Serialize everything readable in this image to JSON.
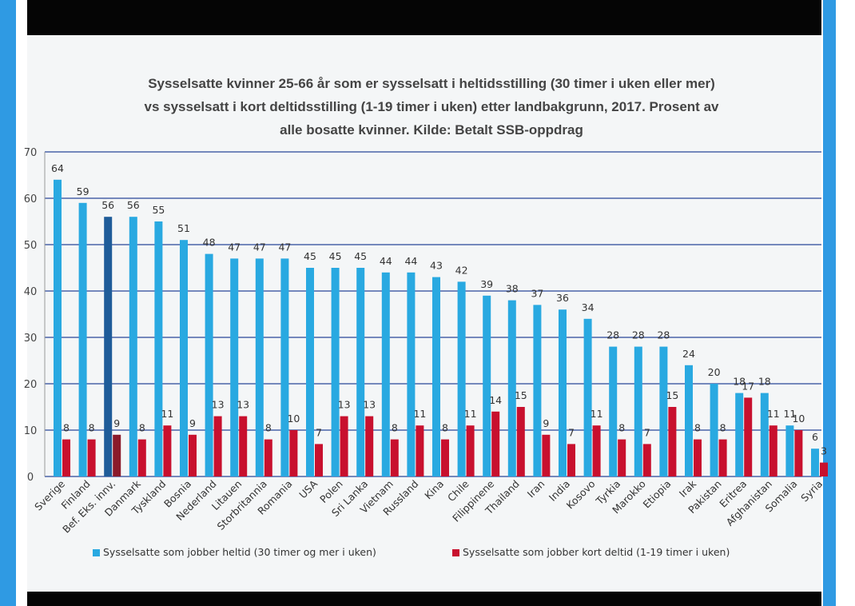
{
  "title_lines": [
    "Sysselsatte  kvinner 25-66 år som er sysselsatt  i  heltidsstilling (30 timer i uken eller mer)",
    "vs sysselsatt i kort deltidsstilling (1-19 timer i uken)  etter landbakgrunn, 2017. Prosent av",
    "alle bosatte kvinner. Kilde: Betalt SSB-oppdrag"
  ],
  "colors": {
    "heltid": "#29a9e1",
    "heltid_highlight": "#1f5c99",
    "deltid": "#c8102e",
    "deltid_highlight": "#8b1a2b",
    "grid": "#4a63a8",
    "frame": "#2f9ae3"
  },
  "chart_data": {
    "type": "bar",
    "title": "Sysselsatte  kvinner 25-66 år som er sysselsatt  i  heltidsstilling (30 timer i uken eller mer) vs sysselsatt i kort deltidsstilling (1-19 timer i uken)  etter landbakgrunn, 2017. Prosent av alle bosatte kvinner. Kilde: Betalt SSB-oppdrag",
    "categories": [
      "Sverige",
      "Finland",
      "Bef. Eks. innv.",
      "Danmark",
      "Tyskland",
      "Bosnia",
      "Nederland",
      "Litauen",
      "Storbritannia",
      "Romania",
      "USA",
      "Polen",
      "Sri Lanka",
      "Vietnam",
      "Russland",
      "Kina",
      "Chile",
      "Filippinene",
      "Thailand",
      "Iran",
      "India",
      "Kosovo",
      "Tyrkia",
      "Marokko",
      "Etiopia",
      "Irak",
      "Pakistan",
      "Eritrea",
      "Afghanistan",
      "Somalia",
      "Syria"
    ],
    "series": [
      {
        "name": "Sysselsatte som jobber heltid (30 timer og mer i uken)",
        "values": [
          64,
          59,
          56,
          56,
          55,
          51,
          48,
          47,
          47,
          47,
          45,
          45,
          45,
          44,
          44,
          43,
          42,
          39,
          38,
          37,
          36,
          34,
          28,
          28,
          28,
          24,
          20,
          18,
          18,
          11,
          6
        ]
      },
      {
        "name": "Sysselsatte som jobber kort deltid (1-19 timer i uken)",
        "values": [
          8,
          8,
          9,
          8,
          11,
          9,
          13,
          13,
          8,
          10,
          7,
          13,
          13,
          8,
          11,
          8,
          11,
          14,
          15,
          9,
          7,
          11,
          8,
          7,
          15,
          8,
          8,
          17,
          11,
          10,
          3
        ]
      }
    ],
    "highlight_category": "Bef. Eks. innv.",
    "ylim": [
      0,
      70
    ],
    "y_ticks": [
      "0",
      "10",
      "20",
      "30",
      "40",
      "50",
      "60",
      "70"
    ],
    "grid": true,
    "legend_position": "bottom"
  }
}
